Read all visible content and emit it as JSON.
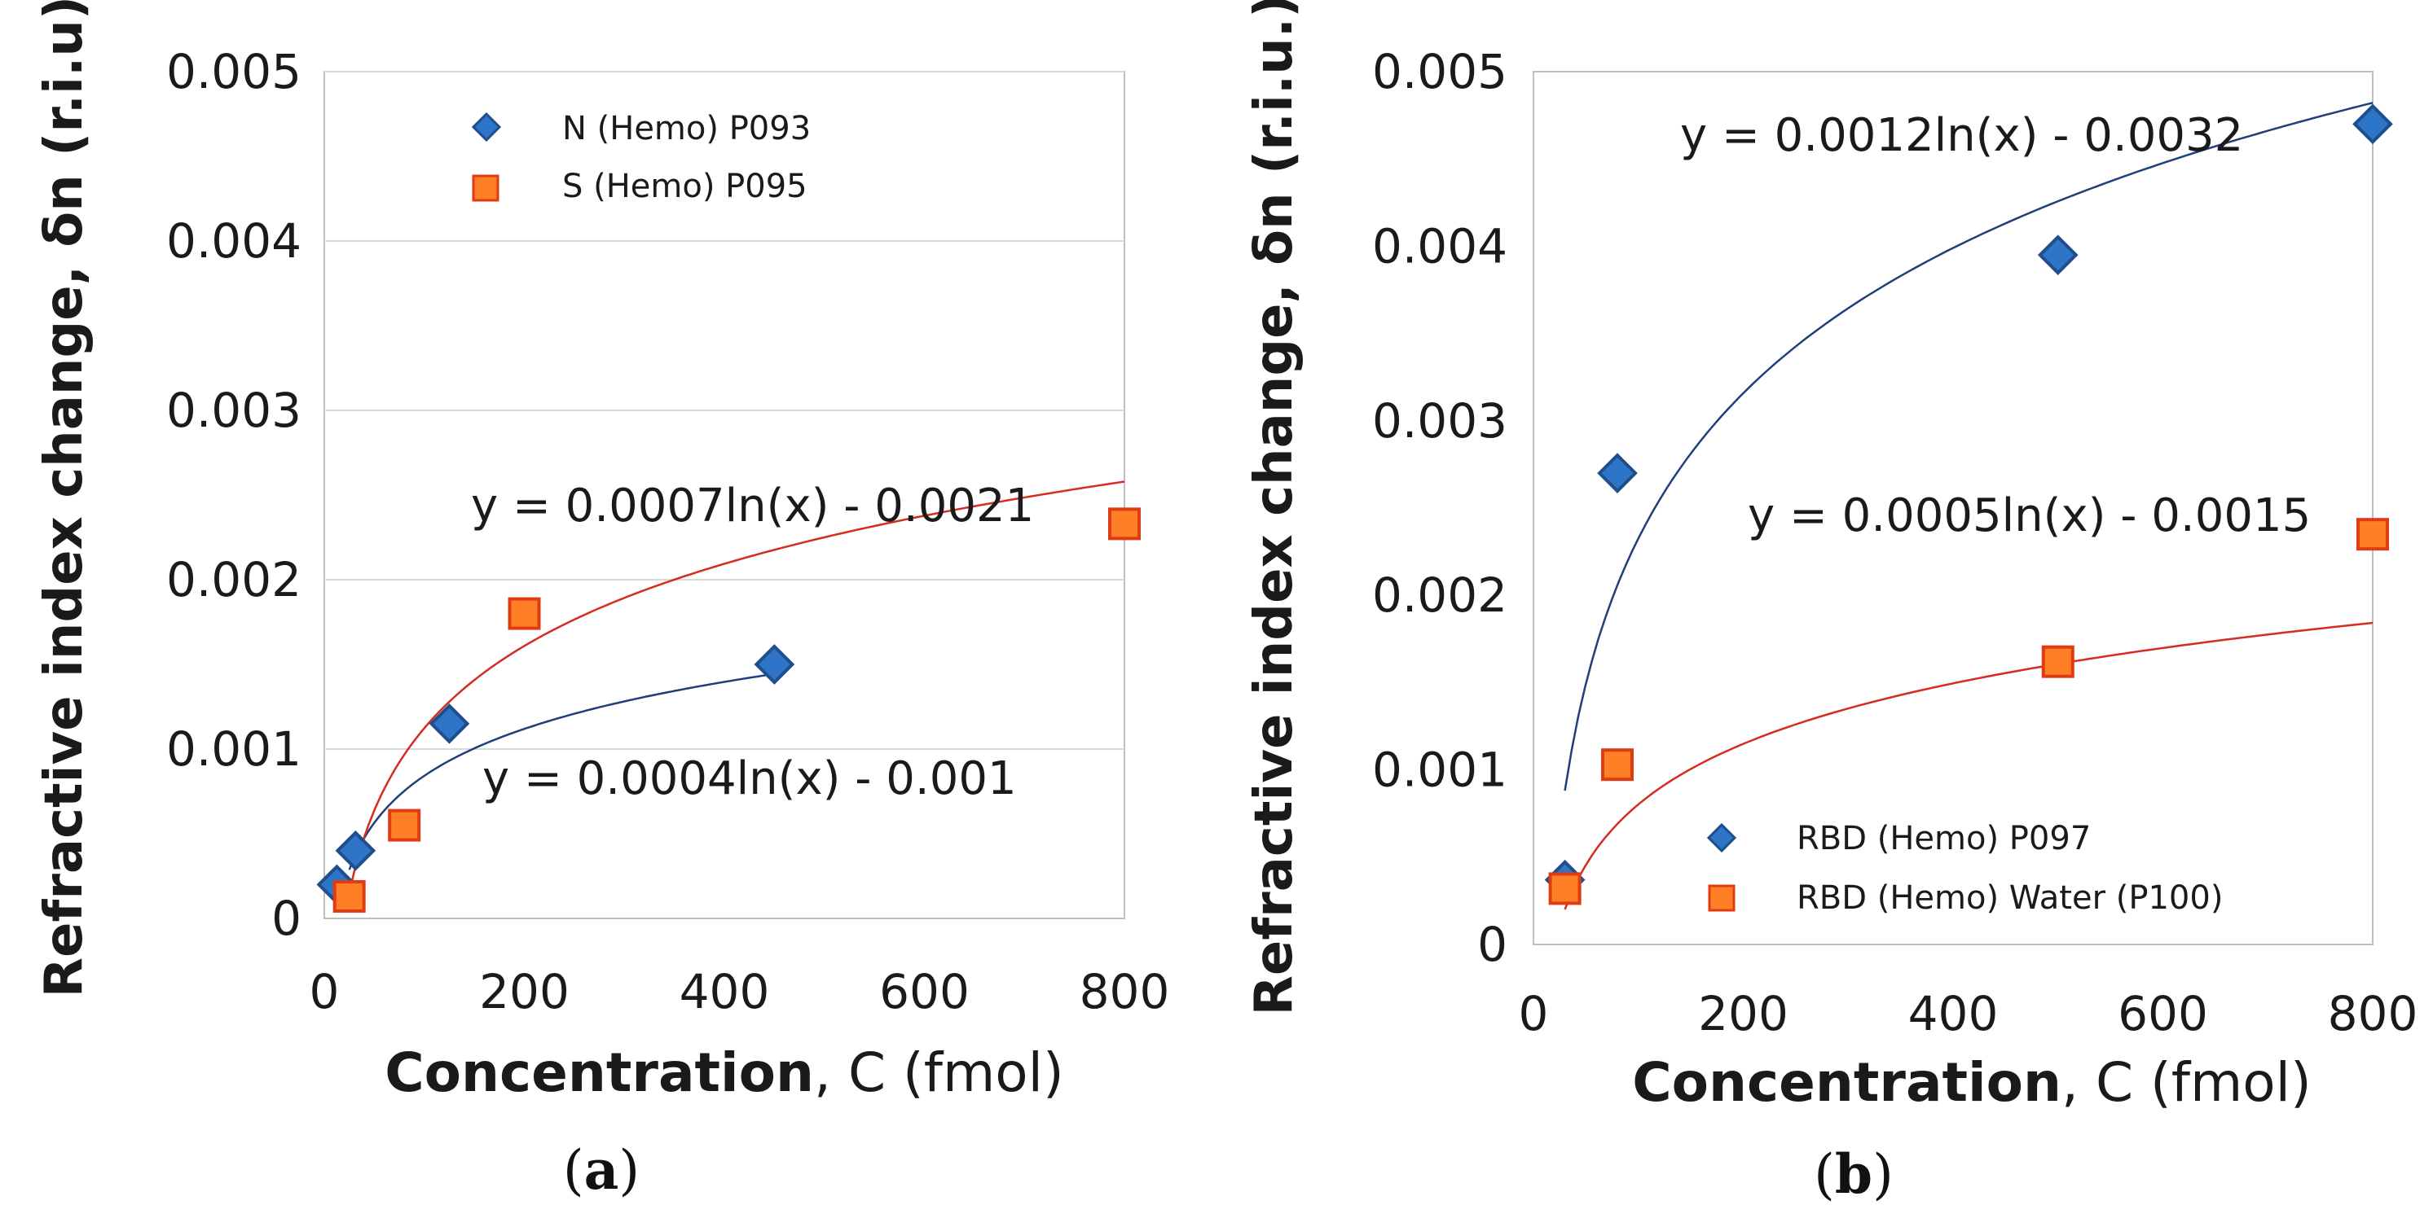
{
  "chart_data": [
    {
      "type": "scatter",
      "panel_label": {
        "open": "(",
        "letter": "a",
        "close": ")"
      },
      "ylabel": "Refractive index  change, δn (r.i.u)",
      "xlabel_bold": "Concentration",
      "xlabel_rest": ", C (fmol)",
      "xlim": [
        0,
        800
      ],
      "ylim": [
        0,
        0.005
      ],
      "xticks": [
        "0",
        "200",
        "400",
        "600",
        "800"
      ],
      "xtick_values": [
        0,
        200,
        400,
        600,
        800
      ],
      "yticks": [
        "0",
        "0.001",
        "0.002",
        "0.003",
        "0.004",
        "0.005"
      ],
      "ytick_values": [
        0,
        0.001,
        0.002,
        0.003,
        0.004,
        0.005
      ],
      "grid": true,
      "legend_position": "top-left",
      "series": [
        {
          "name": "N (Hemo) P093",
          "marker": "diamond",
          "color": "#2e75c7",
          "edge": "#1f4e8c",
          "x": [
            12.5,
            31.25,
            125,
            450
          ],
          "y": [
            0.0002,
            0.0004,
            0.00115,
            0.0015
          ],
          "trend": {
            "a": 0.0004,
            "b": -0.001,
            "x_from": 25,
            "x_to": 450,
            "color": "#1f3f7a",
            "label": "y = 0.0004ln(x) - 0.001"
          }
        },
        {
          "name": "S (Hemo) P095",
          "marker": "square",
          "color": "#ff7f27",
          "edge": "#e03c14",
          "x": [
            25,
            80,
            200,
            800
          ],
          "y": [
            0.00013,
            0.00055,
            0.0018,
            0.00233
          ],
          "trend": {
            "a": 0.0007,
            "b": -0.0021,
            "x_from": 25,
            "x_to": 800,
            "color": "#d62b1f",
            "label": "y = 0.0007ln(x) - 0.0021"
          }
        }
      ]
    },
    {
      "type": "scatter",
      "panel_label": {
        "open": "(",
        "letter": "b",
        "close": ")"
      },
      "ylabel": "Refractive index  change, δn (r.i.u.)",
      "xlabel_bold": "Concentration",
      "xlabel_rest": ", C (fmol)",
      "xlim": [
        0,
        800
      ],
      "ylim": [
        0,
        0.005
      ],
      "xticks": [
        "0",
        "200",
        "400",
        "600",
        "800"
      ],
      "xtick_values": [
        0,
        200,
        400,
        600,
        800
      ],
      "yticks": [
        "0",
        "0.001",
        "0.002",
        "0.003",
        "0.004",
        "0.005"
      ],
      "ytick_values": [
        0,
        0.001,
        0.002,
        0.003,
        0.004,
        0.005
      ],
      "grid": false,
      "legend_position": "bottom-left",
      "series": [
        {
          "name": "RBD (Hemo) P097",
          "marker": "diamond",
          "color": "#2e75c7",
          "edge": "#1f4e8c",
          "x": [
            30,
            80,
            500,
            800
          ],
          "y": [
            0.00037,
            0.0027,
            0.00395,
            0.0047
          ],
          "trend": {
            "a": 0.0012,
            "b": -0.0032,
            "x_from": 30,
            "x_to": 800,
            "color": "#1f3f7a",
            "label": "y = 0.0012ln(x) - 0.0032"
          }
        },
        {
          "name": "RBD (Hemo) Water (P100)",
          "marker": "square",
          "color": "#ff7f27",
          "edge": "#e03c14",
          "x": [
            30,
            80,
            500,
            800
          ],
          "y": [
            0.00032,
            0.00103,
            0.00162,
            0.00235
          ],
          "trend": {
            "a": 0.0005,
            "b": -0.0015,
            "x_from": 30,
            "x_to": 800,
            "color": "#d62b1f",
            "label": "y = 0.0005ln(x) - 0.0015"
          }
        }
      ]
    }
  ]
}
